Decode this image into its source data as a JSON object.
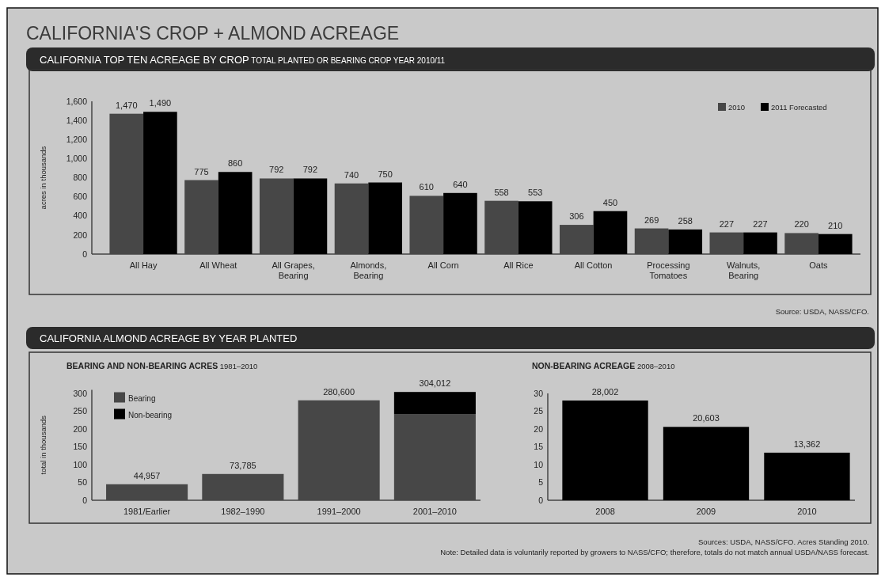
{
  "chart_data": [
    {
      "type": "bar",
      "title": "CALIFORNIA TOP TEN ACREAGE BY CROP",
      "subtitle": "TOTAL PLANTED OR BEARING CROP YEAR 2010/11",
      "ylabel": "acres in thousands",
      "annotations": [
        "CALIFORNIA'S CROP + ALMOND ACREAGE",
        "Source: USDA, NASS/CFO."
      ],
      "categories": [
        "All Hay",
        "All Wheat",
        "All Grapes, Bearing",
        "Almonds, Bearing",
        "All Corn",
        "All Rice",
        "All Cotton",
        "Processing Tomatoes",
        "Walnuts, Bearing",
        "Oats"
      ],
      "series": [
        {
          "name": "2010",
          "color": "#474747",
          "values": [
            1470,
            775,
            792,
            740,
            610,
            558,
            306,
            269,
            227,
            220
          ],
          "value_labels": [
            "1,470",
            "775",
            "792",
            "740",
            "610",
            "558",
            "306",
            "269",
            "227",
            "220"
          ]
        },
        {
          "name": "2011 Forecasted",
          "color": "#000000",
          "values": [
            1490,
            860,
            792,
            750,
            640,
            553,
            450,
            258,
            227,
            210
          ],
          "value_labels": [
            "1,490",
            "860",
            "792",
            "750",
            "640",
            "553",
            "450",
            "258",
            "227",
            "210"
          ]
        }
      ],
      "ylim": [
        0,
        1600
      ],
      "yticks": [
        0,
        200,
        400,
        600,
        800,
        {
          "value": 1000,
          "label": "1,000"
        },
        {
          "value": 1200,
          "label": "1,200"
        },
        {
          "value": 1400,
          "label": "1,400"
        },
        {
          "value": 1600,
          "label": "1,600"
        }
      ],
      "legend": "top right"
    },
    {
      "type": "bar",
      "title": "BEARING AND NON-BEARING ACRES",
      "subtitle": "1981–2010",
      "ylabel": "total in thousands",
      "annotations": [
        "CALIFORNIA ALMOND ACREAGE BY YEAR PLANTED",
        {
          "text": "44,957",
          "x": "1981/Earlier",
          "y": 44.957
        },
        {
          "text": "73,785",
          "x": "1982–1990",
          "y": 73.785
        },
        {
          "text": "280,600",
          "x": "1991–2000",
          "y": 280.6
        },
        {
          "text": "304,012",
          "x": "2001–2010",
          "y": 304.012
        }
      ],
      "categories": [
        "1981/Earlier",
        "1982–1990",
        "1991–2000",
        "2001–2010"
      ],
      "stacked": true,
      "series": [
        {
          "name": "Bearing",
          "color": "#474747",
          "values": [
            44.957,
            73.785,
            280.6,
            242.045
          ]
        },
        {
          "name": "Non-bearing",
          "color": "#000000",
          "values": [
            null,
            null,
            null,
            61.967
          ]
        }
      ],
      "ylim": [
        0,
        310
      ],
      "yticks": [
        0,
        50,
        100,
        150,
        200,
        250,
        300
      ],
      "legend": "top left"
    },
    {
      "type": "bar",
      "title": "NON-BEARING ACREAGE",
      "subtitle": "2008–2010",
      "annotations": [
        "Sources: USDA, NASS/CFO. Acres Standing 2010.",
        "Note: Detailed data is voluntarily reported by growers to NASS/CFO; therefore, totals do not match annual USDA/NASS forecast.",
        {
          "text": "28,002",
          "x": "2008",
          "y": 28.002
        },
        {
          "text": "20,603",
          "x": "2009",
          "y": 20.603
        },
        {
          "text": "13,362",
          "x": "2010",
          "y": 13.362
        }
      ],
      "categories": [
        "2008",
        "2009",
        "2010"
      ],
      "values": [
        28.002,
        20.603,
        13.362
      ],
      "color": "#000000",
      "ylim": [
        0,
        30
      ],
      "yticks": [
        0,
        5,
        10,
        15,
        20,
        25,
        30
      ]
    }
  ]
}
